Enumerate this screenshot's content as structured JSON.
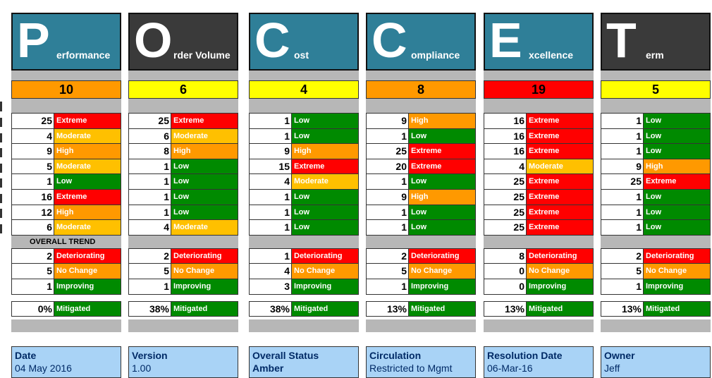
{
  "colors": {
    "header_blue": "#2f7f98",
    "header_dark": "#3a3a3a",
    "extreme": "#ff0000",
    "high": "#ff9900",
    "moderate": "#ffc000",
    "low": "#008a00",
    "score_orange": "#ff9900",
    "score_yellow": "#ffff00",
    "score_red": "#ff0000",
    "gray": "#b7b7b7"
  },
  "trend_header": "OVERALL TREND",
  "columns": [
    {
      "letter": "P",
      "rest": "erformance",
      "header_color": "#2f7f98",
      "score": "10",
      "score_color": "#ff9900",
      "risks": [
        {
          "n": "25",
          "label": "Extreme"
        },
        {
          "n": "4",
          "label": "Moderate"
        },
        {
          "n": "9",
          "label": "High"
        },
        {
          "n": "5",
          "label": "Moderate"
        },
        {
          "n": "1",
          "label": "Low"
        },
        {
          "n": "16",
          "label": "Extreme"
        },
        {
          "n": "12",
          "label": "High"
        },
        {
          "n": "6",
          "label": "Moderate"
        }
      ],
      "trend": [
        {
          "n": "2",
          "label": "Deteriorating"
        },
        {
          "n": "5",
          "label": "No Change"
        },
        {
          "n": "1",
          "label": "Improving"
        }
      ],
      "mitigated": {
        "n": "0%",
        "label": "Mitigated"
      }
    },
    {
      "letter": "O",
      "rest": "rder Volume",
      "header_color": "#3a3a3a",
      "score": "6",
      "score_color": "#ffff00",
      "risks": [
        {
          "n": "25",
          "label": "Extreme"
        },
        {
          "n": "6",
          "label": "Moderate"
        },
        {
          "n": "8",
          "label": "High"
        },
        {
          "n": "1",
          "label": "Low"
        },
        {
          "n": "1",
          "label": "Low"
        },
        {
          "n": "1",
          "label": "Low"
        },
        {
          "n": "1",
          "label": "Low"
        },
        {
          "n": "4",
          "label": "Moderate"
        }
      ],
      "trend": [
        {
          "n": "2",
          "label": "Deteriorating"
        },
        {
          "n": "5",
          "label": "No Change"
        },
        {
          "n": "1",
          "label": "Improving"
        }
      ],
      "mitigated": {
        "n": "38%",
        "label": "Mitigated"
      }
    },
    {
      "letter": "C",
      "rest": "ost",
      "header_color": "#2f7f98",
      "score": "4",
      "score_color": "#ffff00",
      "risks": [
        {
          "n": "1",
          "label": "Low"
        },
        {
          "n": "1",
          "label": "Low"
        },
        {
          "n": "9",
          "label": "High"
        },
        {
          "n": "15",
          "label": "Extreme"
        },
        {
          "n": "4",
          "label": "Moderate"
        },
        {
          "n": "1",
          "label": "Low"
        },
        {
          "n": "1",
          "label": "Low"
        },
        {
          "n": "1",
          "label": "Low"
        }
      ],
      "trend": [
        {
          "n": "1",
          "label": "Deteriorating"
        },
        {
          "n": "4",
          "label": "No Change"
        },
        {
          "n": "3",
          "label": "Improving"
        }
      ],
      "mitigated": {
        "n": "38%",
        "label": "Mitigated"
      }
    },
    {
      "letter": "C",
      "rest": "ompliance",
      "header_color": "#2f7f98",
      "score": "8",
      "score_color": "#ff9900",
      "risks": [
        {
          "n": "9",
          "label": "High"
        },
        {
          "n": "1",
          "label": "Low"
        },
        {
          "n": "25",
          "label": "Extreme"
        },
        {
          "n": "20",
          "label": "Extreme"
        },
        {
          "n": "1",
          "label": "Low"
        },
        {
          "n": "9",
          "label": "High"
        },
        {
          "n": "1",
          "label": "Low"
        },
        {
          "n": "1",
          "label": "Low"
        }
      ],
      "trend": [
        {
          "n": "2",
          "label": "Deteriorating"
        },
        {
          "n": "5",
          "label": "No Change"
        },
        {
          "n": "1",
          "label": "Improving"
        }
      ],
      "mitigated": {
        "n": "13%",
        "label": "Mitigated"
      }
    },
    {
      "letter": "E",
      "rest": "xcellence",
      "header_color": "#2f7f98",
      "score": "19",
      "score_color": "#ff0000",
      "risks": [
        {
          "n": "16",
          "label": "Extreme"
        },
        {
          "n": "16",
          "label": "Extreme"
        },
        {
          "n": "16",
          "label": "Extreme"
        },
        {
          "n": "4",
          "label": "Moderate"
        },
        {
          "n": "25",
          "label": "Extreme"
        },
        {
          "n": "25",
          "label": "Extreme"
        },
        {
          "n": "25",
          "label": "Extreme"
        },
        {
          "n": "25",
          "label": "Extreme"
        }
      ],
      "trend": [
        {
          "n": "8",
          "label": "Deteriorating"
        },
        {
          "n": "0",
          "label": "No Change"
        },
        {
          "n": "0",
          "label": "Improving"
        }
      ],
      "mitigated": {
        "n": "13%",
        "label": "Mitigated"
      }
    },
    {
      "letter": "T",
      "rest": "erm",
      "header_color": "#3a3a3a",
      "score": "5",
      "score_color": "#ffff00",
      "risks": [
        {
          "n": "1",
          "label": "Low"
        },
        {
          "n": "1",
          "label": "Low"
        },
        {
          "n": "1",
          "label": "Low"
        },
        {
          "n": "9",
          "label": "High"
        },
        {
          "n": "25",
          "label": "Extreme"
        },
        {
          "n": "1",
          "label": "Low"
        },
        {
          "n": "1",
          "label": "Low"
        },
        {
          "n": "1",
          "label": "Low"
        }
      ],
      "trend": [
        {
          "n": "2",
          "label": "Deteriorating"
        },
        {
          "n": "5",
          "label": "No Change"
        },
        {
          "n": "1",
          "label": "Improving"
        }
      ],
      "mitigated": {
        "n": "13%",
        "label": "Mitigated"
      }
    }
  ],
  "info": [
    {
      "title": "Date",
      "value": "04 May 2016"
    },
    {
      "title": "Version",
      "value": "1.00"
    },
    {
      "title": "Overall Status",
      "value": "Amber"
    },
    {
      "title": "Circulation",
      "value": "Restricted to Mgmt"
    },
    {
      "title": "Resolution Date",
      "value": "06-Mar-16"
    },
    {
      "title": "Owner",
      "value": "Jeff"
    }
  ]
}
